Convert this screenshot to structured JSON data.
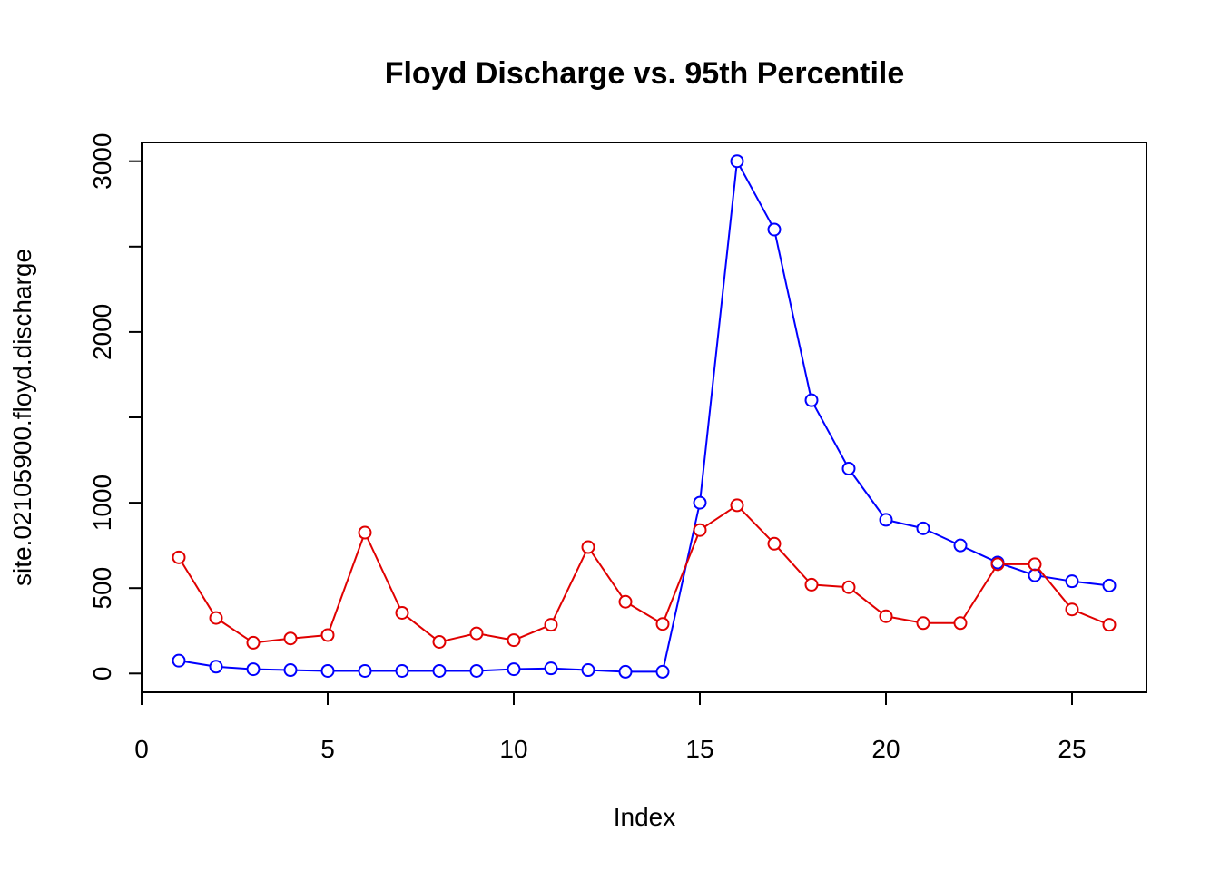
{
  "chart_data": {
    "type": "line",
    "title": "Floyd Discharge vs. 95th Percentile",
    "xlabel": "Index",
    "ylabel": "site.02105900.floyd.discharge",
    "xlim": [
      0,
      27
    ],
    "ylim": [
      -110,
      3110
    ],
    "x_ticks": [
      0,
      5,
      10,
      15,
      20,
      25
    ],
    "y_ticks": [
      0,
      500,
      1000,
      1500,
      2000,
      2500,
      3000
    ],
    "y_tick_labels": [
      "0",
      "500",
      "1000",
      "",
      "2000",
      "",
      "3000"
    ],
    "grid": false,
    "legend": "none",
    "x": [
      1,
      2,
      3,
      4,
      5,
      6,
      7,
      8,
      9,
      10,
      11,
      12,
      13,
      14,
      15,
      16,
      17,
      18,
      19,
      20,
      21,
      22,
      23,
      24,
      25,
      26
    ],
    "series": [
      {
        "color": "#0000ff",
        "marker": "open-circle",
        "values": [
          75,
          40,
          25,
          20,
          15,
          15,
          15,
          15,
          15,
          25,
          30,
          20,
          10,
          10,
          1000,
          3000,
          2600,
          1600,
          1200,
          900,
          850,
          750,
          650,
          575,
          540,
          515
        ]
      },
      {
        "color": "#e00000",
        "marker": "open-circle",
        "values": [
          680,
          325,
          180,
          205,
          225,
          825,
          355,
          185,
          235,
          195,
          285,
          740,
          420,
          290,
          840,
          985,
          760,
          520,
          505,
          335,
          295,
          295,
          640,
          640,
          375,
          285
        ]
      }
    ]
  }
}
